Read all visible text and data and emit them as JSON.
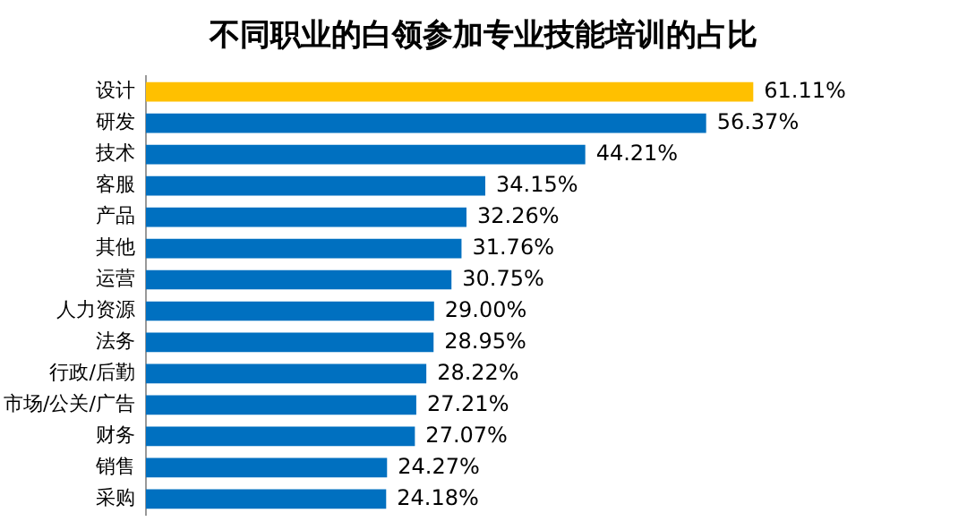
{
  "chart_data": {
    "type": "bar",
    "orientation": "horizontal",
    "title": "不同职业的白领参加专业技能培训的占比",
    "categories": [
      "设计",
      "研发",
      "技术",
      "客服",
      "产品",
      "其他",
      "运营",
      "人力资源",
      "法务",
      "行政/后勤",
      "市场/公关/广告",
      "财务",
      "销售",
      "采购"
    ],
    "values": [
      61.11,
      56.37,
      44.21,
      34.15,
      32.26,
      31.76,
      30.75,
      29.0,
      28.95,
      28.22,
      27.21,
      27.07,
      24.27,
      24.18
    ],
    "value_labels": [
      "61.11%",
      "56.37%",
      "44.21%",
      "34.15%",
      "32.26%",
      "31.76%",
      "30.75%",
      "29.00%",
      "28.95%",
      "28.22%",
      "27.21%",
      "27.07%",
      "24.27%",
      "24.18%"
    ],
    "colors": [
      "#ffc000",
      "#0070c0",
      "#0070c0",
      "#0070c0",
      "#0070c0",
      "#0070c0",
      "#0070c0",
      "#0070c0",
      "#0070c0",
      "#0070c0",
      "#0070c0",
      "#0070c0",
      "#0070c0",
      "#0070c0"
    ],
    "tick_labels": "y",
    "grid": false,
    "legend": false
  }
}
